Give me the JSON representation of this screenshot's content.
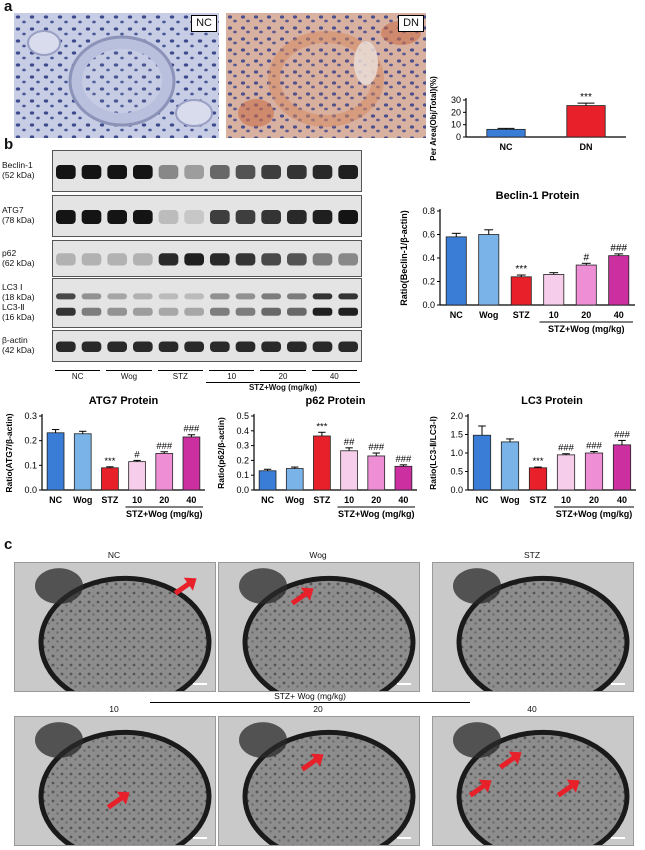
{
  "panels": {
    "a": "a",
    "b": "b",
    "c": "c"
  },
  "panel_a": {
    "nc_tag": "NC",
    "dn_tag": "DN"
  },
  "blot": {
    "rows": [
      {
        "name": "Beclin-1",
        "kda": "(52 kDa)"
      },
      {
        "name": "ATG7",
        "kda": "(78 kDa)"
      },
      {
        "name": "p62",
        "kda": "(62 kDa)"
      },
      {
        "name": "LC3 Ⅰ",
        "kda": "(18 kDa)"
      },
      {
        "name": "LC3-Ⅱ",
        "kda": "(16 kDa)"
      },
      {
        "name": "β-actin",
        "kda": "(42 kDa)"
      }
    ],
    "lanes": [
      "NC",
      "Wog",
      "STZ",
      "10",
      "20",
      "40"
    ],
    "group_label": "STZ+Wog (mg/kg)"
  },
  "panel_c": {
    "labels_top": [
      "NC",
      "Wog",
      "STZ"
    ],
    "group_label": "STZ+ Wog (mg/kg)",
    "labels_bottom": [
      "10",
      "20",
      "40"
    ]
  },
  "chart_data": [
    {
      "type": "bar",
      "title": "",
      "ylabel": "Per Area(Obj/Total)(%)",
      "categories": [
        "NC",
        "DN"
      ],
      "values": [
        6.2,
        25.5
      ],
      "errors": [
        0.8,
        2.0
      ],
      "colors": [
        "#3a7dd6",
        "#e8202a"
      ],
      "significance": [
        "",
        "***"
      ],
      "ylim": [
        0,
        30
      ],
      "yticks": [
        0,
        10,
        20,
        30
      ],
      "group_label": ""
    },
    {
      "type": "bar",
      "title": "Beclin-1 Protein",
      "ylabel": "Ratio(Beclin-1/β-actin)",
      "categories": [
        "NC",
        "Wog",
        "STZ",
        "10",
        "20",
        "40"
      ],
      "values": [
        0.58,
        0.6,
        0.24,
        0.26,
        0.34,
        0.42
      ],
      "errors": [
        0.03,
        0.04,
        0.015,
        0.015,
        0.015,
        0.015
      ],
      "colors": [
        "#3a7dd6",
        "#79b3e8",
        "#e8202a",
        "#f6cdea",
        "#ee8fd6",
        "#cc2f9f"
      ],
      "significance": [
        "",
        "",
        "***",
        "",
        "#",
        "###"
      ],
      "ylim": [
        0,
        0.8
      ],
      "yticks": [
        0.0,
        0.2,
        0.4,
        0.6,
        0.8
      ],
      "group_label": "STZ+Wog (mg/kg)"
    },
    {
      "type": "bar",
      "title": "ATG7 Protein",
      "ylabel": "Ratio(ATG7/β-actin)",
      "categories": [
        "NC",
        "Wog",
        "STZ",
        "10",
        "20",
        "40"
      ],
      "values": [
        0.232,
        0.228,
        0.09,
        0.115,
        0.148,
        0.215
      ],
      "errors": [
        0.013,
        0.01,
        0.004,
        0.005,
        0.007,
        0.009
      ],
      "colors": [
        "#3a7dd6",
        "#79b3e8",
        "#e8202a",
        "#f6cdea",
        "#ee8fd6",
        "#cc2f9f"
      ],
      "significance": [
        "",
        "",
        "***",
        "#",
        "###",
        "###"
      ],
      "ylim": [
        0,
        0.3
      ],
      "yticks": [
        0.0,
        0.1,
        0.2,
        0.3
      ],
      "group_label": "STZ+Wog (mg/kg)"
    },
    {
      "type": "bar",
      "title": "p62 Protein",
      "ylabel": "Ratio(p62/β-actin)",
      "categories": [
        "NC",
        "Wog",
        "STZ",
        "10",
        "20",
        "40"
      ],
      "values": [
        0.13,
        0.145,
        0.365,
        0.265,
        0.23,
        0.16
      ],
      "errors": [
        0.01,
        0.01,
        0.025,
        0.02,
        0.02,
        0.01
      ],
      "colors": [
        "#3a7dd6",
        "#79b3e8",
        "#e8202a",
        "#f6cdea",
        "#ee8fd6",
        "#cc2f9f"
      ],
      "significance": [
        "",
        "",
        "***",
        "##",
        "###",
        "###"
      ],
      "ylim": [
        0,
        0.5
      ],
      "yticks": [
        0.0,
        0.1,
        0.2,
        0.3,
        0.4,
        0.5
      ],
      "group_label": "STZ+Wog (mg/kg)"
    },
    {
      "type": "bar",
      "title": "LC3 Protein",
      "ylabel": "Ratio(LC3-Ⅱ/LC3-Ⅰ)",
      "categories": [
        "NC",
        "Wog",
        "STZ",
        "10",
        "20",
        "40"
      ],
      "values": [
        1.48,
        1.3,
        0.6,
        0.95,
        1.0,
        1.22
      ],
      "errors": [
        0.25,
        0.08,
        0.02,
        0.03,
        0.04,
        0.12
      ],
      "colors": [
        "#3a7dd6",
        "#79b3e8",
        "#e8202a",
        "#f6cdea",
        "#ee8fd6",
        "#cc2f9f"
      ],
      "significance": [
        "",
        "",
        "***",
        "###",
        "###",
        "###"
      ],
      "ylim": [
        0,
        2.0
      ],
      "yticks": [
        0.0,
        0.5,
        1.0,
        1.5,
        2.0
      ],
      "group_label": "STZ+Wog (mg/kg)"
    }
  ]
}
